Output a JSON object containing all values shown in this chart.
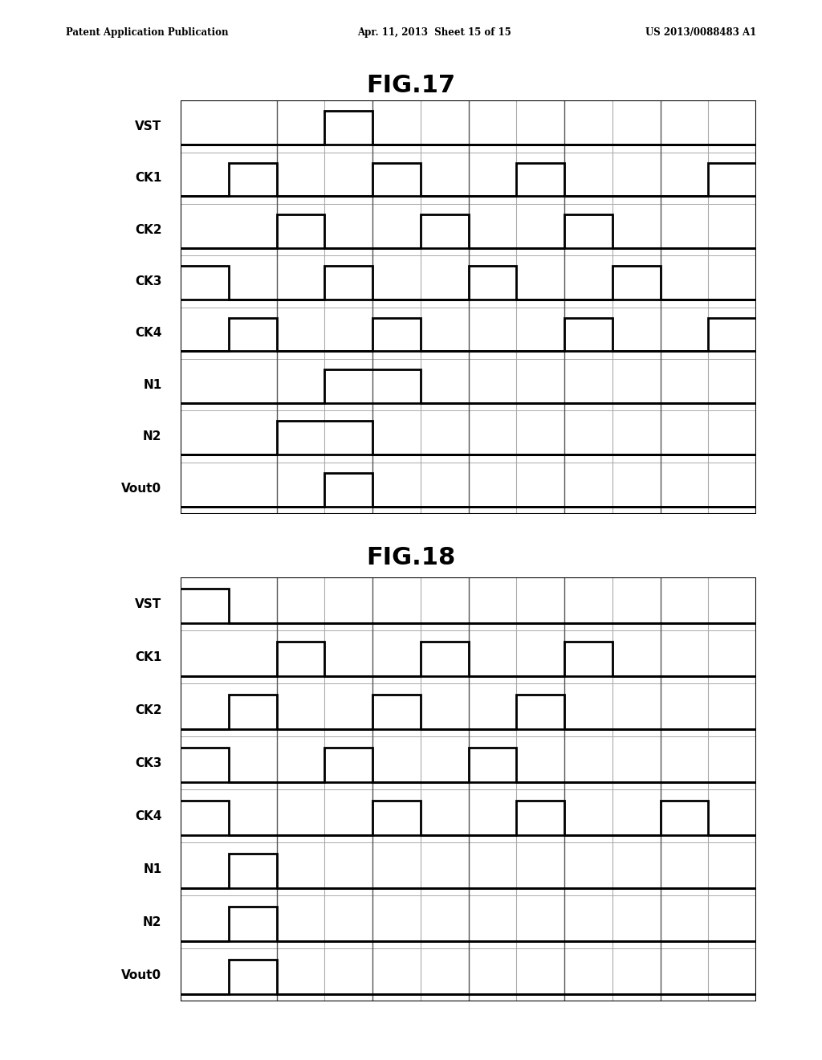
{
  "header_left": "Patent Application Publication",
  "header_center": "Apr. 11, 2013  Sheet 15 of 15",
  "header_right": "US 2013/0088483 A1",
  "fig17_title": "FIG.17",
  "fig18_title": "FIG.18",
  "background_color": "#ffffff",
  "signal_color": "#000000",
  "grid_color_dark": "#777777",
  "grid_color_light": "#aaaaaa",
  "fig17": {
    "signals": [
      "VST",
      "CK1",
      "CK2",
      "CK3",
      "CK4",
      "N1",
      "N2",
      "Vout0"
    ],
    "n_cols": 12,
    "dark_vlines": [
      2,
      4,
      6,
      8,
      10
    ],
    "light_vlines": [
      3,
      5,
      7,
      9,
      11
    ],
    "VST": [
      0,
      0,
      0,
      1,
      0,
      0,
      0,
      0,
      0,
      0,
      0,
      0
    ],
    "CK1": [
      0,
      1,
      0,
      0,
      1,
      0,
      0,
      1,
      0,
      0,
      0,
      1
    ],
    "CK2": [
      0,
      0,
      1,
      0,
      0,
      1,
      0,
      0,
      1,
      0,
      0,
      0
    ],
    "CK3": [
      1,
      0,
      0,
      1,
      0,
      0,
      1,
      0,
      0,
      1,
      0,
      0
    ],
    "CK4": [
      0,
      1,
      0,
      0,
      1,
      0,
      0,
      0,
      1,
      0,
      0,
      1
    ],
    "N1": [
      0,
      0,
      0,
      1,
      1,
      0,
      0,
      0,
      0,
      0,
      0,
      0
    ],
    "N2": [
      0,
      0,
      1,
      1,
      0,
      0,
      0,
      0,
      0,
      0,
      0,
      0
    ],
    "Vout0": [
      0,
      0,
      0,
      1,
      0,
      0,
      0,
      0,
      0,
      0,
      0,
      0
    ]
  },
  "fig18": {
    "signals": [
      "VST",
      "CK1",
      "CK2",
      "CK3",
      "CK4",
      "N1",
      "N2",
      "Vout0"
    ],
    "n_cols": 12,
    "dark_vlines": [
      2,
      4,
      6,
      8,
      10
    ],
    "light_vlines": [
      3,
      5,
      7,
      9,
      11
    ],
    "VST": [
      1,
      0,
      0,
      0,
      0,
      0,
      0,
      0,
      0,
      0,
      0,
      0
    ],
    "CK1": [
      0,
      0,
      1,
      0,
      0,
      1,
      0,
      0,
      1,
      0,
      0,
      0
    ],
    "CK2": [
      0,
      1,
      0,
      0,
      1,
      0,
      0,
      1,
      0,
      0,
      0,
      0
    ],
    "CK3": [
      1,
      0,
      0,
      1,
      0,
      0,
      1,
      0,
      0,
      0,
      0,
      0
    ],
    "CK4": [
      1,
      0,
      0,
      0,
      1,
      0,
      0,
      1,
      0,
      0,
      1,
      0
    ],
    "N1": [
      0,
      1,
      0,
      0,
      0,
      0,
      0,
      0,
      0,
      0,
      0,
      0
    ],
    "N2": [
      0,
      1,
      0,
      0,
      0,
      0,
      0,
      0,
      0,
      0,
      0,
      0
    ],
    "Vout0": [
      0,
      1,
      0,
      0,
      0,
      0,
      0,
      0,
      0,
      0,
      0,
      0
    ]
  }
}
